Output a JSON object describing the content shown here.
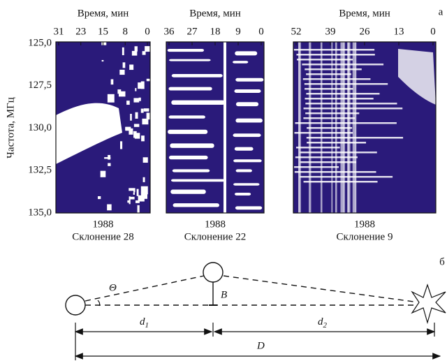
{
  "figure": {
    "label_a": "а",
    "label_b": "б",
    "y_label": "Частота, МГц",
    "yticks": [
      "125,0",
      "127,5",
      "130,0",
      "132,5",
      "135,0"
    ],
    "panels": [
      {
        "x_label": "Время, мин",
        "xticks": [
          "31",
          "23",
          "15",
          "8",
          "0"
        ],
        "year": "1988",
        "caption": "Склонение 28"
      },
      {
        "x_label": "Время, мин",
        "xticks": [
          "36",
          "27",
          "18",
          "9",
          "0"
        ],
        "year": "1988",
        "caption": "Склонение 22"
      },
      {
        "x_label": "Время, мин",
        "xticks": [
          "52",
          "39",
          "26",
          "13",
          "0"
        ],
        "year": "1988",
        "caption": "Склонение 9"
      }
    ],
    "diagram": {
      "theta": "Θ",
      "b": "B",
      "d1": "d",
      "d1_sub": "1",
      "d2": "d",
      "d2_sub": "2",
      "total": "D"
    }
  }
}
